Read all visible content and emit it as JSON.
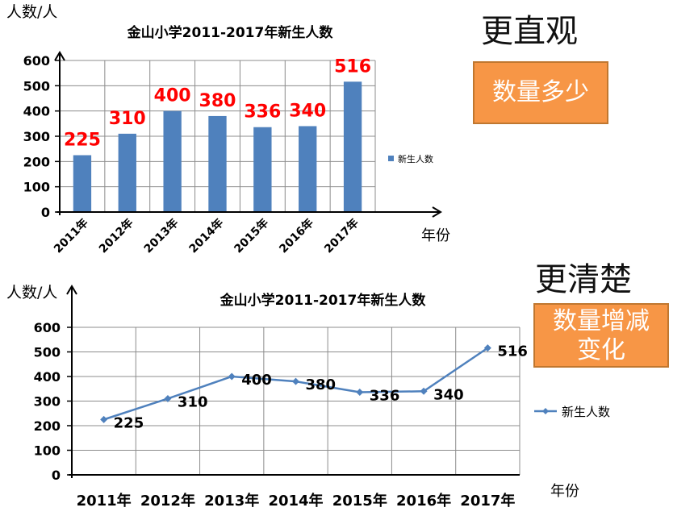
{
  "headings": {
    "intuitive": "更直观",
    "clearer": "更清楚"
  },
  "boxes": {
    "quantity": "数量多少",
    "change_line1": "数量增减",
    "change_line2": "变化"
  },
  "chart_data": [
    {
      "type": "bar",
      "title": "金山小学2011-2017年新生人数",
      "ylabel": "人数/人",
      "xlabel": "年份",
      "categories": [
        "2011年",
        "2012年",
        "2013年",
        "2014年",
        "2015年",
        "2016年",
        "2017年"
      ],
      "series": [
        {
          "name": "新生人数",
          "values": [
            225,
            310,
            400,
            380,
            336,
            340,
            516
          ],
          "color": "#4f81bd"
        }
      ],
      "yticks": [
        "0",
        "100",
        "200",
        "300",
        "400",
        "500",
        "600"
      ],
      "ylim": [
        0,
        600
      ],
      "grid": true,
      "legend": "right",
      "data_label_color": "#ff0000"
    },
    {
      "type": "line",
      "title": "金山小学2011-2017年新生人数",
      "ylabel": "人数/人",
      "xlabel": "年份",
      "categories": [
        "2011年",
        "2012年",
        "2013年",
        "2014年",
        "2015年",
        "2016年",
        "2017年"
      ],
      "series": [
        {
          "name": "新生人数",
          "values": [
            225,
            310,
            400,
            380,
            336,
            340,
            516
          ],
          "color": "#4f81bd"
        }
      ],
      "yticks": [
        "0",
        "100",
        "200",
        "300",
        "400",
        "500",
        "600"
      ],
      "ylim": [
        0,
        600
      ],
      "grid": true,
      "legend": "right",
      "data_label_color": "#000000"
    }
  ]
}
